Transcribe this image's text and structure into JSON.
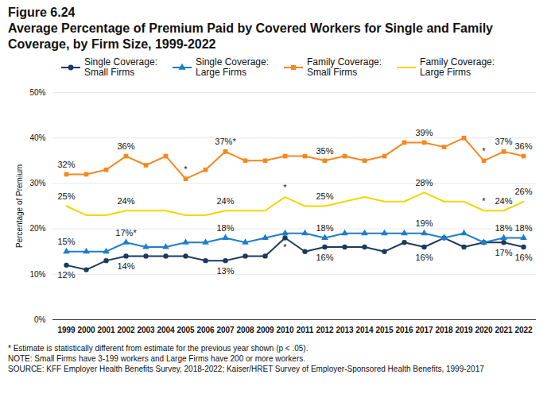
{
  "chart_data": {
    "type": "line",
    "title": "Figure 6.24",
    "subtitle": "Average Percentage of Premium Paid by Covered Workers for Single and Family Coverage, by Firm Size, 1999-2022",
    "y_label": "Percentage of Premium",
    "categories": [
      "1999",
      "2000",
      "2001",
      "2002",
      "2003",
      "2004",
      "2005",
      "2006",
      "2007",
      "2008",
      "2009",
      "2010",
      "2011",
      "2012",
      "2013",
      "2014",
      "2015",
      "2016",
      "2017",
      "2018",
      "2019",
      "2020",
      "2021",
      "2022"
    ],
    "ylim": [
      0,
      50
    ],
    "yticks": [
      {
        "value": 0,
        "label": "0%"
      },
      {
        "value": 10,
        "label": "10%"
      },
      {
        "value": 20,
        "label": "20%"
      },
      {
        "value": 30,
        "label": "30%"
      },
      {
        "value": 40,
        "label": "40%"
      },
      {
        "value": 50,
        "label": "50%"
      }
    ],
    "grid": true,
    "legend": "top",
    "data_labels": true,
    "series": [
      {
        "name": "Single Coverage: Small Firms",
        "color": "#1b3a5e",
        "marker": "circle",
        "values": [
          12,
          11,
          13,
          14,
          14,
          14,
          14,
          13,
          13,
          14,
          14,
          18,
          15,
          16,
          16,
          16,
          15,
          17,
          16,
          18,
          16,
          17,
          17,
          16
        ],
        "value_labels": [
          "12%",
          null,
          null,
          "14%",
          null,
          null,
          null,
          null,
          "13%",
          null,
          null,
          null,
          null,
          "16%",
          null,
          null,
          null,
          null,
          "16%",
          null,
          null,
          null,
          "17%",
          "16%"
        ]
      },
      {
        "name": "Single Coverage: Large Firms",
        "color": "#1f7dc7",
        "marker": "triangle",
        "values": [
          15,
          15,
          15,
          17,
          16,
          16,
          17,
          17,
          18,
          17,
          18,
          19,
          19,
          18,
          19,
          19,
          19,
          19,
          19,
          18,
          19,
          17,
          18,
          18
        ],
        "value_labels": [
          "15%",
          null,
          null,
          "17%*",
          null,
          null,
          null,
          null,
          "18%",
          null,
          null,
          null,
          null,
          "18%",
          null,
          null,
          null,
          null,
          "19%",
          null,
          null,
          null,
          "18%",
          "18%"
        ]
      },
      {
        "name": "Family Coverage: Small Firms",
        "color": "#f5871f",
        "marker": "square",
        "values": [
          32,
          32,
          33,
          36,
          34,
          36,
          31,
          33,
          37,
          35,
          35,
          36,
          36,
          35,
          36,
          35,
          36,
          39,
          39,
          38,
          40,
          35,
          37,
          36
        ],
        "value_labels": [
          "32%",
          null,
          null,
          "36%",
          null,
          null,
          null,
          null,
          "37%*",
          null,
          null,
          null,
          null,
          "35%",
          null,
          null,
          null,
          null,
          "39%",
          null,
          null,
          null,
          "37%",
          "36%"
        ]
      },
      {
        "name": "Family Coverage: Large Firms",
        "color": "#f2d600",
        "marker": "none",
        "values": [
          25,
          23,
          23,
          24,
          24,
          24,
          23,
          23,
          24,
          24,
          24,
          27,
          25,
          25,
          26,
          27,
          26,
          26,
          28,
          26,
          26,
          24,
          24,
          26
        ],
        "value_labels": [
          "25%",
          null,
          null,
          "24%",
          null,
          null,
          null,
          null,
          "24%",
          null,
          null,
          null,
          null,
          "25%",
          null,
          null,
          null,
          null,
          "28%",
          null,
          null,
          null,
          "24%",
          "26%"
        ]
      }
    ],
    "annotations": [
      {
        "series": "Family Coverage: Small Firms",
        "x": "2005",
        "text": "*"
      },
      {
        "series": "Family Coverage: Small Firms",
        "x": "2020",
        "text": "*"
      },
      {
        "series": "Family Coverage: Large Firms",
        "x": "2010",
        "text": "*"
      },
      {
        "series": "Family Coverage: Large Firms",
        "x": "2020",
        "text": "*"
      },
      {
        "series": "Single Coverage: Small Firms",
        "x": "2010",
        "text": "*"
      }
    ],
    "notes": [
      "* Estimate is statistically different from estimate for the previous year shown (p < .05).",
      "NOTE: Small Firms have 3-199 workers and Large Firms have 200 or more workers.",
      "SOURCE: KFF Employer Health Benefits Survey, 2018-2022; Kaiser/HRET Survey of Employer-Sponsored Health Benefits, 1999-2017"
    ]
  }
}
